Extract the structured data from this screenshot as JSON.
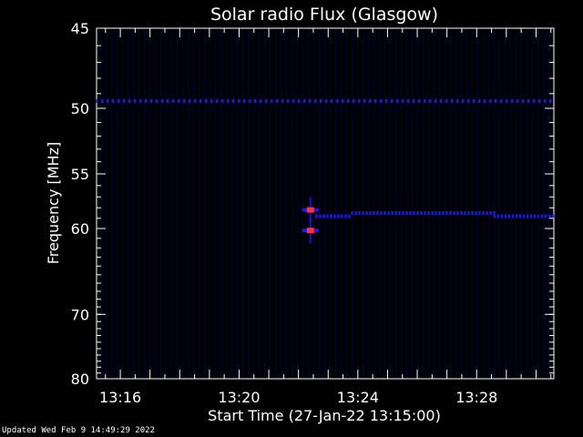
{
  "chart_data": {
    "type": "heatmap",
    "title": "Solar radio Flux (Glasgow)",
    "xlabel": "Start Time (27-Jan-22 13:15:00)",
    "ylabel": "Frequency [MHz]",
    "x_unit": "minutes after 13:15:00",
    "xlim": [
      0.2,
      15.6
    ],
    "ylim_reciprocal_scale": [
      45,
      80
    ],
    "x_ticks": [
      {
        "value": 1,
        "label": "13:16"
      },
      {
        "value": 5,
        "label": "13:20"
      },
      {
        "value": 9,
        "label": "13:24"
      },
      {
        "value": 13,
        "label": "13:28"
      }
    ],
    "y_ticks": [
      {
        "value": 45,
        "label": "45"
      },
      {
        "value": 50,
        "label": "50"
      },
      {
        "value": 55,
        "label": "55"
      },
      {
        "value": 60,
        "label": "60"
      },
      {
        "value": 70,
        "label": "70"
      },
      {
        "value": 80,
        "label": "80"
      }
    ],
    "background_color": "#000000",
    "low_intensity_color": "#1a1aee",
    "high_intensity_color": "#ff3333",
    "features": [
      {
        "name": "interference line",
        "frequency_mhz": 49.5,
        "x_start": 0.2,
        "x_end": 15.6,
        "intensity": "low"
      },
      {
        "name": "burst",
        "frequency_mhz": 58.2,
        "x": 7.4,
        "intensity": "high"
      },
      {
        "name": "burst",
        "frequency_mhz": 60.2,
        "x": 7.4,
        "intensity": "high"
      },
      {
        "name": "emission band",
        "frequency_mhz": 58.8,
        "x_start": 7.6,
        "x_end": 8.8,
        "intensity": "low"
      },
      {
        "name": "emission band",
        "frequency_mhz": 58.5,
        "x_start": 8.8,
        "x_end": 13.6,
        "intensity": "low"
      },
      {
        "name": "emission band",
        "frequency_mhz": 58.8,
        "x_start": 13.6,
        "x_end": 15.6,
        "intensity": "low"
      }
    ]
  },
  "footer": {
    "updated": "Updated Wed Feb  9 14:49:29 2022"
  }
}
